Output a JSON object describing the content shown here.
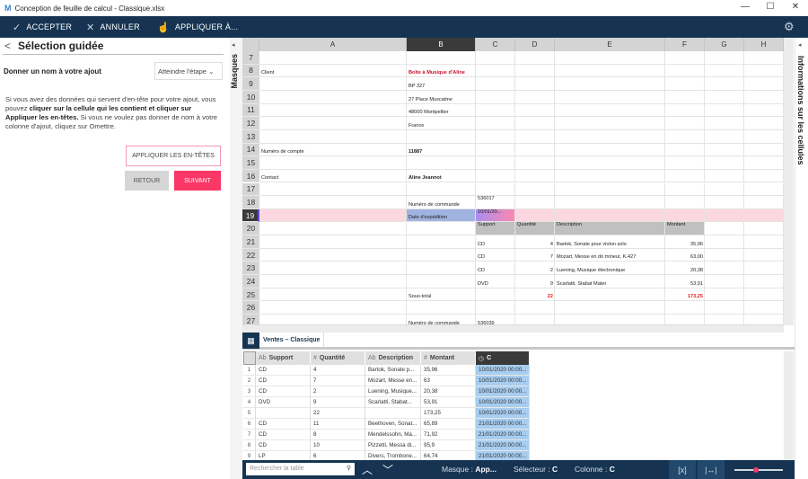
{
  "window": {
    "title": "Conception de feuille de calcul - Classique.xlsx",
    "minimize": "—",
    "maximize": "☐",
    "close": "✕"
  },
  "toolbar": {
    "accept": "ACCEPTER",
    "cancel": "ANNULER",
    "apply_to": "APPLIQUER À..."
  },
  "left_panel": {
    "title": "Sélection guidée",
    "step_label": "Donner un nom à votre ajout",
    "step_select": "Atteindre l'étape",
    "desc_1": "Si vous avez des données qui servent d'en-tête pour votre ajout, vous pouvez ",
    "desc_bold": "cliquer sur la cellule qui les contient et cliquer sur Appliquer les en-têtes.",
    "desc_2": " Si vous ne voulez pas donner de nom à votre colonne d'ajout, cliquez sur Omettre.",
    "apply_headers": "APPLIQUER LES EN-TÊTES",
    "back": "RETOUR",
    "next": "SUIVANT"
  },
  "side_tabs": {
    "left": "Masques",
    "right": "Informations sur les cellules"
  },
  "colors": {
    "navy": "#163452",
    "accent": "#fa3766",
    "selected_row": "#fdd7e0",
    "selected_cell": "#9fb3e0",
    "table_header": "#c0c0c0",
    "total_red": "#e02020",
    "brand_red": "#c8102e"
  },
  "sheet": {
    "columns": [
      "A",
      "B",
      "C",
      "D",
      "E",
      "F",
      "G",
      "H"
    ],
    "active_column": "B",
    "active_row": 19,
    "rows": [
      {
        "n": 7,
        "cells": {}
      },
      {
        "n": 8,
        "cells": {
          "A": "Client",
          "B": "Boîte à Musique d'Aline"
        }
      },
      {
        "n": 9,
        "cells": {
          "B": "BP 327"
        }
      },
      {
        "n": 10,
        "cells": {
          "B": "27 Place Muscatine"
        }
      },
      {
        "n": 11,
        "cells": {
          "B": "48000 Montpellier"
        }
      },
      {
        "n": 12,
        "cells": {
          "B": "France"
        }
      },
      {
        "n": 13,
        "cells": {}
      },
      {
        "n": 14,
        "cells": {
          "A": "Numéro de compte",
          "B": "11887"
        }
      },
      {
        "n": 15,
        "cells": {}
      },
      {
        "n": 16,
        "cells": {
          "A": "Contact",
          "B": "Aline Jeannot"
        }
      },
      {
        "n": 17,
        "cells": {}
      },
      {
        "n": 18,
        "cells": {
          "B": "Numéro de commande",
          "C": "536017"
        }
      },
      {
        "n": 19,
        "cells": {
          "B": "Date d'expédition",
          "C": "10/01/20..."
        }
      },
      {
        "n": 20,
        "cells": {
          "C": "Support",
          "D": "Quantité",
          "E": "Description",
          "F": "Montant"
        }
      },
      {
        "n": 21,
        "cells": {
          "C": "CD",
          "D": "4",
          "E": "Bartok, Sonate pour violon solo",
          "F": "35,96"
        }
      },
      {
        "n": 22,
        "cells": {
          "C": "CD",
          "D": "7",
          "E": "Mozart, Messe en do mineur, K.427",
          "F": "63,00"
        }
      },
      {
        "n": 23,
        "cells": {
          "C": "CD",
          "D": "2",
          "E": "Luening, Musique électronique",
          "F": "20,38"
        }
      },
      {
        "n": 24,
        "cells": {
          "C": "DVD",
          "D": "9",
          "E": "Scarlatti, Stabat Mater",
          "F": "53,91"
        }
      },
      {
        "n": 25,
        "cells": {
          "B": "Sous-total",
          "D": "22",
          "F": "173,25"
        }
      },
      {
        "n": 26,
        "cells": {}
      },
      {
        "n": 27,
        "cells": {
          "B": "Numéro de commande",
          "C": "536039"
        }
      }
    ]
  },
  "table_tab": "Ventes – Classique",
  "grid": {
    "columns": [
      {
        "type": "Ab",
        "name": "Support"
      },
      {
        "type": "#",
        "name": "Quantité"
      },
      {
        "type": "Ab",
        "name": "Description"
      },
      {
        "type": "#",
        "name": "Montant"
      },
      {
        "type": "clock",
        "name": "C"
      }
    ],
    "rows": [
      [
        "1",
        "CD",
        "4",
        "Bartok, Sonate p...",
        "35,96",
        "10/01/2020 00:00..."
      ],
      [
        "2",
        "CD",
        "7",
        "Mozart, Messe en...",
        "63",
        "10/01/2020 00:00..."
      ],
      [
        "3",
        "CD",
        "2",
        "Luening, Musique...",
        "20,38",
        "10/01/2020 00:00..."
      ],
      [
        "4",
        "DVD",
        "9",
        "Scarlatti, Stabat...",
        "53,91",
        "10/01/2020 00:00..."
      ],
      [
        "5",
        "",
        "22",
        "",
        "173,25",
        "10/01/2020 00:00..."
      ],
      [
        "6",
        "CD",
        "11",
        "Beethoven, Sonat...",
        "65,89",
        "21/01/2020 00:00..."
      ],
      [
        "7",
        "CD",
        "8",
        "Mendelssohn, Ma...",
        "71,92",
        "21/01/2020 00:00..."
      ],
      [
        "8",
        "CD",
        "10",
        "Pizzetti, Messa di...",
        "95,9",
        "21/01/2020 00:00..."
      ],
      [
        "9",
        "LP",
        "6",
        "Divers, Trombone...",
        "64,74",
        "21/01/2020 00:00..."
      ]
    ]
  },
  "status": {
    "search_placeholder": "Rechercher la table",
    "mask_label": "Masque : ",
    "mask_value": "App...",
    "selector_label": "Sélecteur : ",
    "selector_value": "C",
    "column_label": "Colonne : ",
    "column_value": "C",
    "zoom_level": 0.45
  }
}
